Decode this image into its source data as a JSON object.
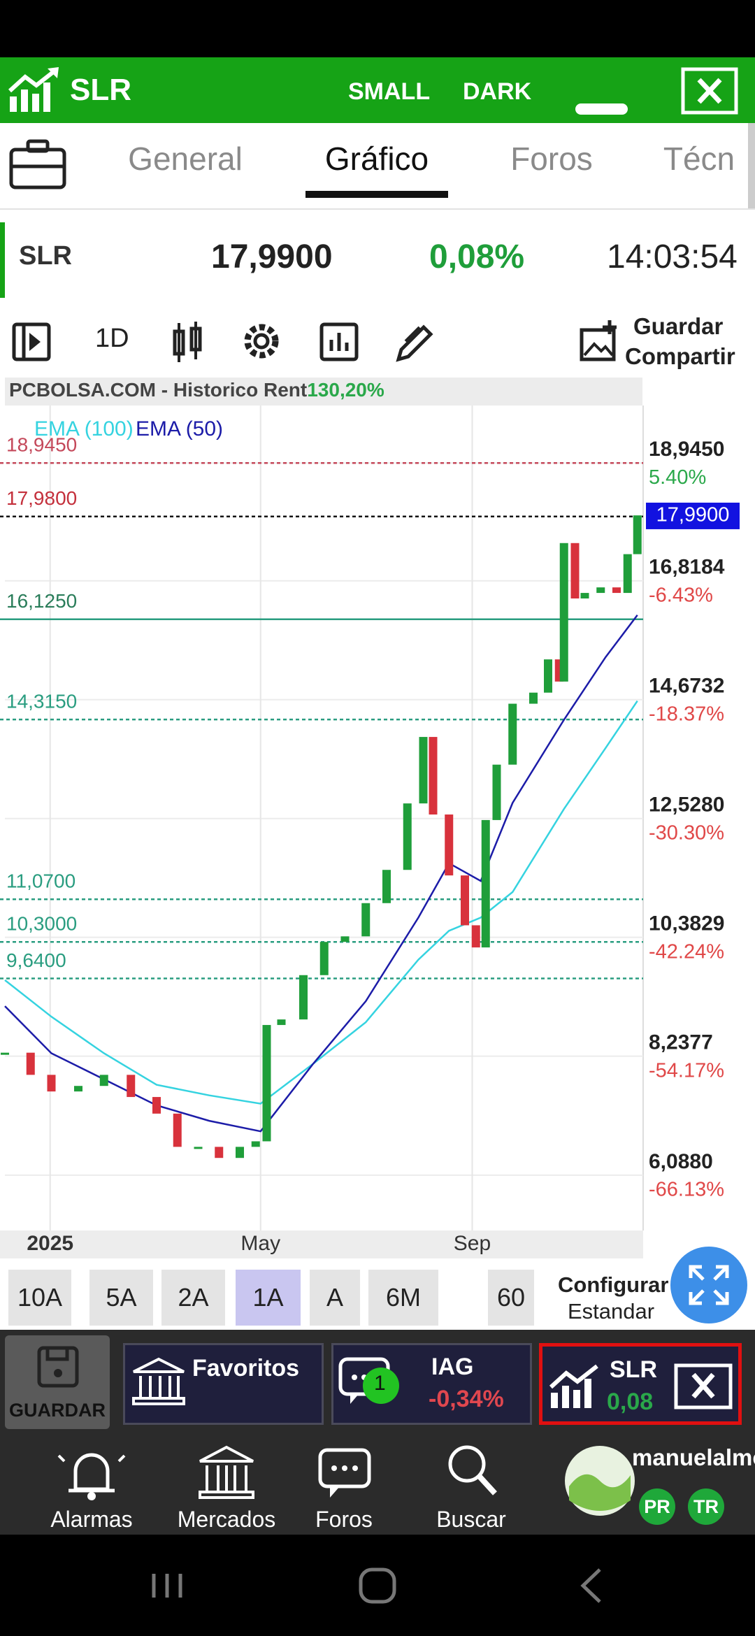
{
  "header": {
    "symbol": "SLR",
    "size_option": "SMALL",
    "theme_option": "DARK"
  },
  "tabs": {
    "items": [
      "General",
      "Gráfico",
      "Foros",
      "Técn"
    ],
    "active": 1
  },
  "quote": {
    "symbol": "SLR",
    "price": "17,9900",
    "change": "0,08%",
    "time": "14:03:54"
  },
  "toolbar": {
    "interval": "1D",
    "save": "Guardar",
    "share": "Compartir"
  },
  "chart": {
    "type": "candlestick",
    "source": "PCBOLSA.COM - Historico  Rent",
    "return": "130,20%",
    "xlim": [
      0,
      52
    ],
    "ylim": [
      5.09,
      19.87
    ],
    "xticks": [
      {
        "value": 3.7,
        "label": "2025"
      },
      {
        "value": 20.9,
        "label": "May"
      },
      {
        "value": 38.2,
        "label": "Sep"
      }
    ],
    "yticks": [
      {
        "value": 18.945,
        "label": "18,9450"
      },
      {
        "value": 16.8184,
        "label": "16,8184"
      },
      {
        "value": 14.6732,
        "label": "14,6732"
      },
      {
        "value": 12.528,
        "label": "12,5280"
      },
      {
        "value": 10.3829,
        "label": "10,3829"
      },
      {
        "value": 8.2377,
        "label": "8,2377"
      },
      {
        "value": 6.088,
        "label": "6,0880"
      }
    ],
    "ytick_changes": [
      {
        "value": 5.4,
        "label": "5.40%"
      },
      {
        "value": -6.43,
        "label": "-6.43%"
      },
      {
        "value": -18.37,
        "label": "-18.37%"
      },
      {
        "value": -30.3,
        "label": "-30.30%"
      },
      {
        "value": -42.24,
        "label": "-42.24%"
      },
      {
        "value": -54.17,
        "label": "-54.17%"
      },
      {
        "value": -66.13,
        "label": "-66.13%"
      }
    ],
    "up_color": "#1f9e3a",
    "down_color": "#d8323c",
    "x": [
      0,
      2.1,
      3.8,
      6.0,
      8.1,
      10.3,
      12.4,
      14.1,
      15.8,
      17.5,
      19.2,
      20.5,
      21.4,
      22.6,
      24.4,
      26.1,
      27.8,
      29.5,
      31.2,
      32.9,
      34.2,
      35.0,
      36.3,
      37.6,
      38.5,
      39.3,
      40.2,
      41.5,
      43.2,
      44.4,
      45.3,
      45.7,
      46.6,
      47.4,
      48.7,
      50.0,
      50.9,
      51.7
    ],
    "closes": [
      8.3,
      7.9,
      7.6,
      7.7,
      7.9,
      7.5,
      7.2,
      6.6,
      6.6,
      6.4,
      6.6,
      6.7,
      8.8,
      8.9,
      9.7,
      10.3,
      10.4,
      11.0,
      11.6,
      12.8,
      14.0,
      12.6,
      11.5,
      10.6,
      10.2,
      12.5,
      13.5,
      14.6,
      14.8,
      15.4,
      15.0,
      17.5,
      16.5,
      16.6,
      16.7,
      16.6,
      17.3,
      18.0
    ],
    "ema": [
      {
        "name": "EMA (100)",
        "color": "#35d3e0",
        "x": [
          0,
          3.8,
          8.1,
          12.4,
          16.7,
          20.9,
          25.2,
          29.5,
          33.8,
          36.3,
          38.9,
          41.5,
          45.7,
          49.1,
          51.7
        ],
        "values": [
          9.61,
          8.95,
          8.29,
          7.72,
          7.53,
          7.38,
          8.1,
          8.85,
          9.98,
          10.5,
          10.74,
          11.2,
          12.7,
          13.8,
          14.65
        ]
      },
      {
        "name": "EMA (50)",
        "color": "#1c1ca8",
        "x": [
          0,
          3.8,
          8.1,
          12.4,
          16.7,
          20.9,
          25.2,
          29.5,
          33.8,
          36.3,
          38.9,
          41.5,
          45.7,
          49.1,
          51.7
        ],
        "values": [
          9.14,
          8.29,
          7.82,
          7.35,
          7.07,
          6.88,
          8.1,
          9.23,
          10.74,
          11.72,
          11.4,
          12.81,
          14.31,
          15.44,
          16.2
        ]
      }
    ],
    "levels": [
      {
        "value": 18.945,
        "label": "18,9450",
        "label_color": "#c4485a",
        "line_color": "#c4485a",
        "style": "dashed"
      },
      {
        "value": 17.98,
        "label": "17,9800",
        "label_color": "#c4303c",
        "line_color": "#111111",
        "style": "dashed"
      },
      {
        "value": 16.125,
        "label": "16,1250",
        "label_color": "#2a7d5a",
        "line_color": "#2a9d80",
        "style": "solid"
      },
      {
        "value": 14.315,
        "label": "14,3150",
        "label_color": "#2a9d80",
        "line_color": "#2a9d80",
        "style": "dashed"
      },
      {
        "value": 11.07,
        "label": "11,0700",
        "label_color": "#2a9d80",
        "line_color": "#2a9d80",
        "style": "dashed"
      },
      {
        "value": 10.3,
        "label": "10,3000",
        "label_color": "#2a9d80",
        "line_color": "#2a9d80",
        "style": "dashed"
      },
      {
        "value": 9.64,
        "label": "9,6400",
        "label_color": "#2a9d80",
        "line_color": "#2a9d80",
        "style": "dashed"
      }
    ],
    "last": {
      "value": 17.99,
      "label": "17,9900",
      "color": "#1212e0"
    }
  },
  "periods": {
    "items": [
      "10A",
      "5A",
      "2A",
      "1A",
      "A",
      "6M",
      "60"
    ],
    "active": 3
  },
  "config": {
    "title": "Configurar",
    "value": "Estandar"
  },
  "dock": {
    "save": "GUARDAR",
    "favorites": "Favoritos",
    "tickers": [
      {
        "symbol": "IAG",
        "badge": "1",
        "change": "-0,34%"
      },
      {
        "symbol": "SLR",
        "change": "0,08"
      }
    ]
  },
  "nav": {
    "items": [
      "Alarmas",
      "Mercados",
      "Foros",
      "Buscar"
    ],
    "user": "manuelalmo",
    "badges": [
      "PR",
      "TR"
    ]
  }
}
